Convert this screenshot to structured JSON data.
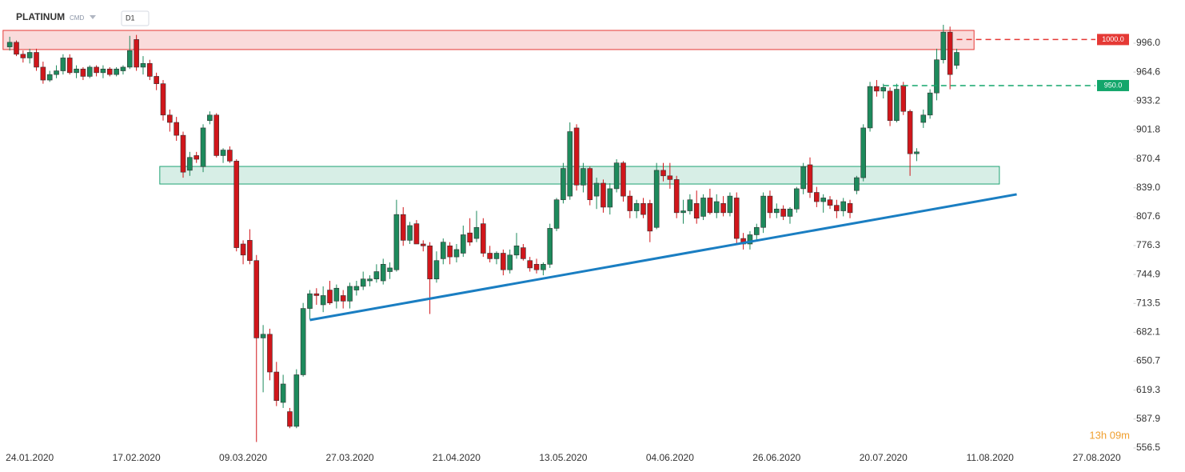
{
  "header": {
    "symbol": "PLATINUM",
    "asset_class": "CMD",
    "timeframe": "D1"
  },
  "countdown": "13h 09m",
  "chart_data": {
    "type": "candlestick",
    "categories": [
      null,
      null,
      null,
      "24.01.2020",
      null,
      null,
      null,
      null,
      null,
      null,
      null,
      null,
      null,
      null,
      null,
      null,
      null,
      null,
      null,
      "17.02.2020",
      null,
      null,
      null,
      null,
      null,
      null,
      null,
      null,
      null,
      null,
      null,
      null,
      null,
      null,
      null,
      "09.03.2020",
      null,
      null,
      null,
      null,
      null,
      null,
      null,
      null,
      null,
      null,
      null,
      null,
      null,
      null,
      null,
      "27.03.2020",
      null,
      null,
      null,
      null,
      null,
      null,
      null,
      null,
      null,
      null,
      null,
      null,
      null,
      null,
      null,
      "21.04.2020",
      null,
      null,
      null,
      null,
      null,
      null,
      null,
      null,
      null,
      null,
      null,
      null,
      null,
      null,
      null,
      "13.05.2020",
      null,
      null,
      null,
      null,
      null,
      null,
      null,
      null,
      null,
      null,
      null,
      null,
      null,
      null,
      null,
      "04.06.2020",
      null,
      null,
      null,
      null,
      null,
      null,
      null,
      null,
      null,
      null,
      null,
      null,
      null,
      null,
      null,
      "26.06.2020",
      null,
      null,
      null,
      null,
      null,
      null,
      null,
      null,
      null,
      null,
      null,
      null,
      null,
      null,
      null,
      "20.07.2020",
      null,
      null,
      null,
      null,
      null,
      null,
      null,
      null,
      null,
      null,
      null,
      null,
      null,
      null,
      null,
      "11.08.2020",
      null,
      null,
      null,
      null,
      null,
      null,
      null,
      null,
      null,
      null,
      null,
      null,
      null,
      null,
      null,
      "27.08.2020",
      null,
      null,
      null,
      null,
      null
    ],
    "open": [
      992,
      997,
      984,
      980,
      986,
      970,
      956,
      962,
      966,
      980,
      964,
      968,
      960,
      970,
      964,
      968,
      962,
      966,
      970,
      1000,
      970,
      974,
      960,
      952,
      918,
      910,
      896,
      858,
      874,
      862,
      912,
      918,
      874,
      880,
      868,
      778,
      782,
      760,
      676,
      680,
      639,
      606,
      596,
      580,
      636,
      708,
      724,
      712,
      728,
      716,
      722,
      716,
      728,
      732,
      738,
      740,
      738,
      748,
      750,
      810,
      782,
      800,
      778,
      776,
      740,
      762,
      776,
      764,
      768,
      790,
      784,
      800,
      768,
      762,
      768,
      750,
      766,
      774,
      760,
      756,
      750,
      756,
      795,
      826,
      830,
      904,
      842,
      860,
      830,
      844,
      818,
      838,
      866,
      830,
      814,
      822,
      822,
      796,
      858,
      852,
      848,
      812,
      814,
      822,
      808,
      828,
      812,
      822,
      812,
      828,
      784,
      778,
      788,
      796,
      830,
      812,
      816,
      808,
      816,
      838,
      864,
      834,
      824,
      826,
      820,
      814,
      822,
      836,
      850,
      904,
      949,
      944,
      944,
      912,
      950,
      922,
      876,
      910,
      918,
      942,
      978,
      1008,
      972,
      null,
      null,
      null,
      null,
      null,
      null,
      null,
      null,
      null,
      null,
      null,
      null,
      null,
      null,
      null,
      null,
      null,
      null,
      null,
      null,
      null,
      null,
      null,
      null,
      null,
      null
    ],
    "high": [
      1003,
      999,
      988,
      990,
      990,
      976,
      966,
      972,
      984,
      984,
      972,
      970,
      972,
      972,
      972,
      970,
      970,
      972,
      1004,
      1005,
      982,
      978,
      964,
      956,
      924,
      916,
      900,
      878,
      878,
      908,
      922,
      920,
      882,
      884,
      870,
      782,
      794,
      766,
      690,
      686,
      650,
      636,
      600,
      642,
      714,
      728,
      730,
      732,
      738,
      734,
      728,
      736,
      738,
      748,
      744,
      756,
      762,
      758,
      826,
      818,
      802,
      804,
      782,
      780,
      770,
      784,
      780,
      778,
      798,
      806,
      814,
      806,
      776,
      770,
      772,
      772,
      790,
      778,
      764,
      762,
      758,
      800,
      828,
      866,
      910,
      908,
      866,
      862,
      850,
      848,
      844,
      870,
      868,
      836,
      826,
      828,
      826,
      866,
      866,
      866,
      852,
      826,
      832,
      836,
      832,
      838,
      832,
      830,
      834,
      834,
      790,
      792,
      800,
      834,
      836,
      822,
      820,
      818,
      840,
      866,
      872,
      840,
      832,
      830,
      826,
      828,
      826,
      852,
      908,
      954,
      956,
      952,
      948,
      952,
      954,
      924,
      882,
      924,
      946,
      990,
      1016,
      1014,
      990,
      null,
      null,
      null,
      null,
      null,
      null,
      null,
      null,
      null,
      null,
      null,
      null,
      null,
      null,
      null,
      null,
      null,
      null,
      null,
      null,
      null,
      null,
      null,
      null,
      null,
      null
    ],
    "low": [
      988,
      982,
      975,
      974,
      966,
      952,
      954,
      958,
      962,
      962,
      958,
      956,
      958,
      960,
      958,
      960,
      960,
      962,
      968,
      966,
      962,
      956,
      945,
      912,
      900,
      890,
      850,
      852,
      866,
      856,
      908,
      872,
      866,
      866,
      770,
      756,
      756,
      563,
      617,
      630,
      602,
      600,
      578,
      578,
      634,
      696,
      712,
      704,
      712,
      708,
      708,
      708,
      722,
      728,
      732,
      736,
      734,
      740,
      748,
      776,
      778,
      778,
      770,
      702,
      736,
      756,
      756,
      758,
      764,
      776,
      780,
      764,
      758,
      756,
      744,
      746,
      762,
      760,
      748,
      746,
      744,
      752,
      792,
      822,
      826,
      836,
      834,
      820,
      816,
      812,
      810,
      834,
      824,
      806,
      806,
      806,
      780,
      794,
      846,
      838,
      806,
      800,
      810,
      800,
      804,
      810,
      806,
      808,
      808,
      778,
      772,
      772,
      782,
      790,
      806,
      806,
      804,
      800,
      812,
      832,
      828,
      818,
      812,
      816,
      806,
      808,
      806,
      832,
      846,
      900,
      938,
      936,
      906,
      910,
      918,
      852,
      868,
      904,
      914,
      934,
      974,
      946,
      968,
      null,
      null,
      null,
      null,
      null,
      null,
      null,
      null,
      null,
      null,
      null,
      null,
      null,
      null,
      null,
      null,
      null,
      null,
      null,
      null,
      null,
      null,
      null,
      null,
      null,
      null
    ],
    "close": [
      997,
      984,
      980,
      986,
      970,
      956,
      962,
      966,
      980,
      964,
      968,
      960,
      970,
      964,
      968,
      962,
      968,
      970,
      988,
      970,
      974,
      960,
      952,
      918,
      910,
      896,
      856,
      872,
      870,
      904,
      918,
      874,
      880,
      868,
      774,
      766,
      760,
      676,
      680,
      639,
      608,
      626,
      580,
      636,
      708,
      724,
      722,
      722,
      714,
      730,
      716,
      732,
      732,
      740,
      740,
      748,
      756,
      752,
      810,
      782,
      798,
      778,
      776,
      740,
      760,
      780,
      764,
      772,
      788,
      780,
      796,
      768,
      762,
      768,
      750,
      766,
      776,
      762,
      752,
      750,
      756,
      795,
      826,
      860,
      900,
      842,
      860,
      826,
      844,
      818,
      838,
      866,
      830,
      814,
      822,
      810,
      792,
      858,
      852,
      848,
      812,
      814,
      826,
      806,
      828,
      812,
      824,
      812,
      830,
      784,
      778,
      788,
      796,
      830,
      812,
      816,
      808,
      816,
      838,
      862,
      834,
      824,
      828,
      820,
      814,
      824,
      812,
      850,
      904,
      949,
      944,
      948,
      912,
      946,
      922,
      876,
      878,
      918,
      942,
      978,
      1008,
      962,
      986,
      null,
      null,
      null,
      null,
      null,
      null,
      null,
      null,
      null,
      null,
      null,
      null,
      null,
      null,
      null,
      null,
      null,
      null,
      null,
      null,
      null,
      null,
      null,
      null,
      null,
      null
    ],
    "up_color": "#1d8a5c",
    "down_color": "#d0161b",
    "ylim": [
      553.9,
      1042.9
    ],
    "yticks": [
      {
        "value": 996,
        "label": "996.0"
      },
      {
        "value": 964.6,
        "label": "964.6"
      },
      {
        "value": 933.2,
        "label": "933.2"
      },
      {
        "value": 901.8,
        "label": "901.8"
      },
      {
        "value": 870.4,
        "label": "870.4"
      },
      {
        "value": 839,
        "label": "839.0"
      },
      {
        "value": 807.6,
        "label": "807.6"
      },
      {
        "value": 776.3,
        "label": "776.3"
      },
      {
        "value": 744.9,
        "label": "744.9"
      },
      {
        "value": 713.5,
        "label": "713.5"
      },
      {
        "value": 682.1,
        "label": "682.1"
      },
      {
        "value": 650.7,
        "label": "650.7"
      },
      {
        "value": 619.3,
        "label": "619.3"
      },
      {
        "value": 587.9,
        "label": "587.9"
      },
      {
        "value": 556.5,
        "label": "556.5"
      }
    ],
    "zones": [
      {
        "x": [
          -1,
          144.6
        ],
        "y": [
          989.1,
          1009.9
        ],
        "color": "#e53935"
      },
      {
        "x": [
          22.5,
          148.4
        ],
        "y": [
          843.1,
          862.2
        ],
        "color": "#1fa374"
      }
    ],
    "levels": [
      {
        "value": 1000,
        "label": "1000.0",
        "color": "#e53935",
        "x_start": 142
      },
      {
        "value": 950,
        "label": "950.0",
        "color": "#13a66b",
        "x_start": 131
      }
    ],
    "trendlines": [
      {
        "x": [
          45,
          151
        ],
        "y": [
          695.5,
          831.9
        ],
        "color": "#1a7ec2"
      }
    ]
  }
}
